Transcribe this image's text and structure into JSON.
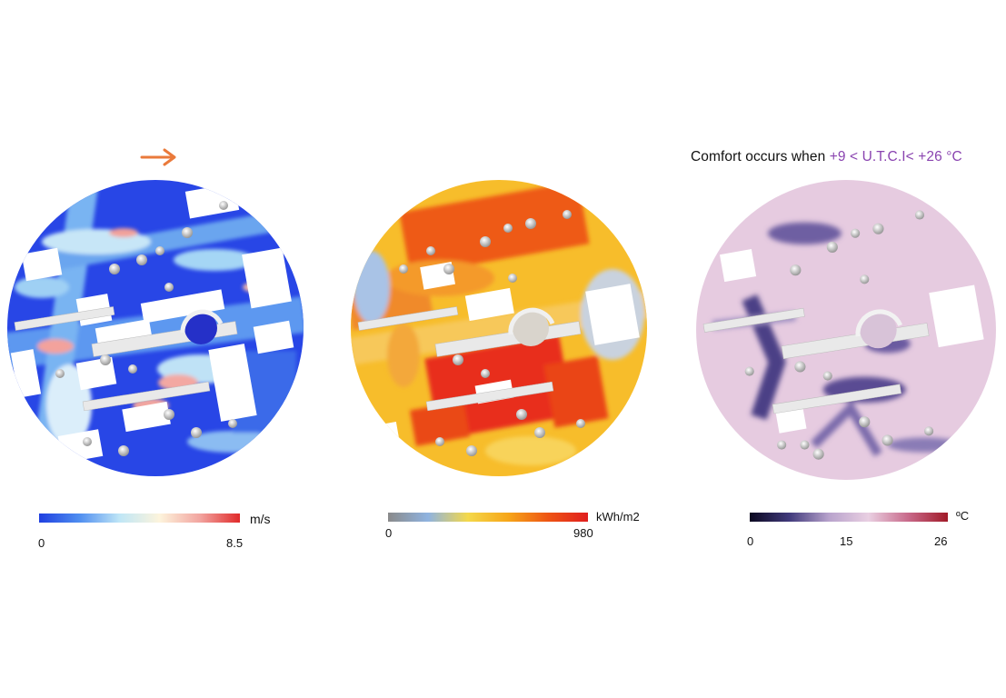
{
  "panels": {
    "wind": {
      "unit": "m/s",
      "min_label": "0",
      "max_label": "8.5",
      "gradient": [
        "#1f3fe0",
        "#4f8ef0",
        "#bfe6f6",
        "#fdf4dc",
        "#f2a5a0",
        "#e02a2a"
      ]
    },
    "radiation": {
      "unit": "kWh/m2",
      "min_label": "0",
      "max_label": "980",
      "gradient": [
        "#8a8a8a",
        "#8fb3e0",
        "#f4d84a",
        "#f6a619",
        "#ee5514",
        "#e01e1e"
      ]
    },
    "utci": {
      "unit": "ºC",
      "min_label": "0",
      "mid_label": "15",
      "max_label": "26",
      "gradient": [
        "#0b0820",
        "#413a7c",
        "#b8a3cc",
        "#e9cfe2",
        "#c86a8a",
        "#a11a28"
      ]
    }
  },
  "wind_direction": "east",
  "comfort_note": {
    "prefix": "Comfort occurs when ",
    "range": "+9 < U.T.C.I< +26 °C"
  },
  "colors": {
    "arrow": "#ea7a3b",
    "highlight": "#8a44b0"
  }
}
